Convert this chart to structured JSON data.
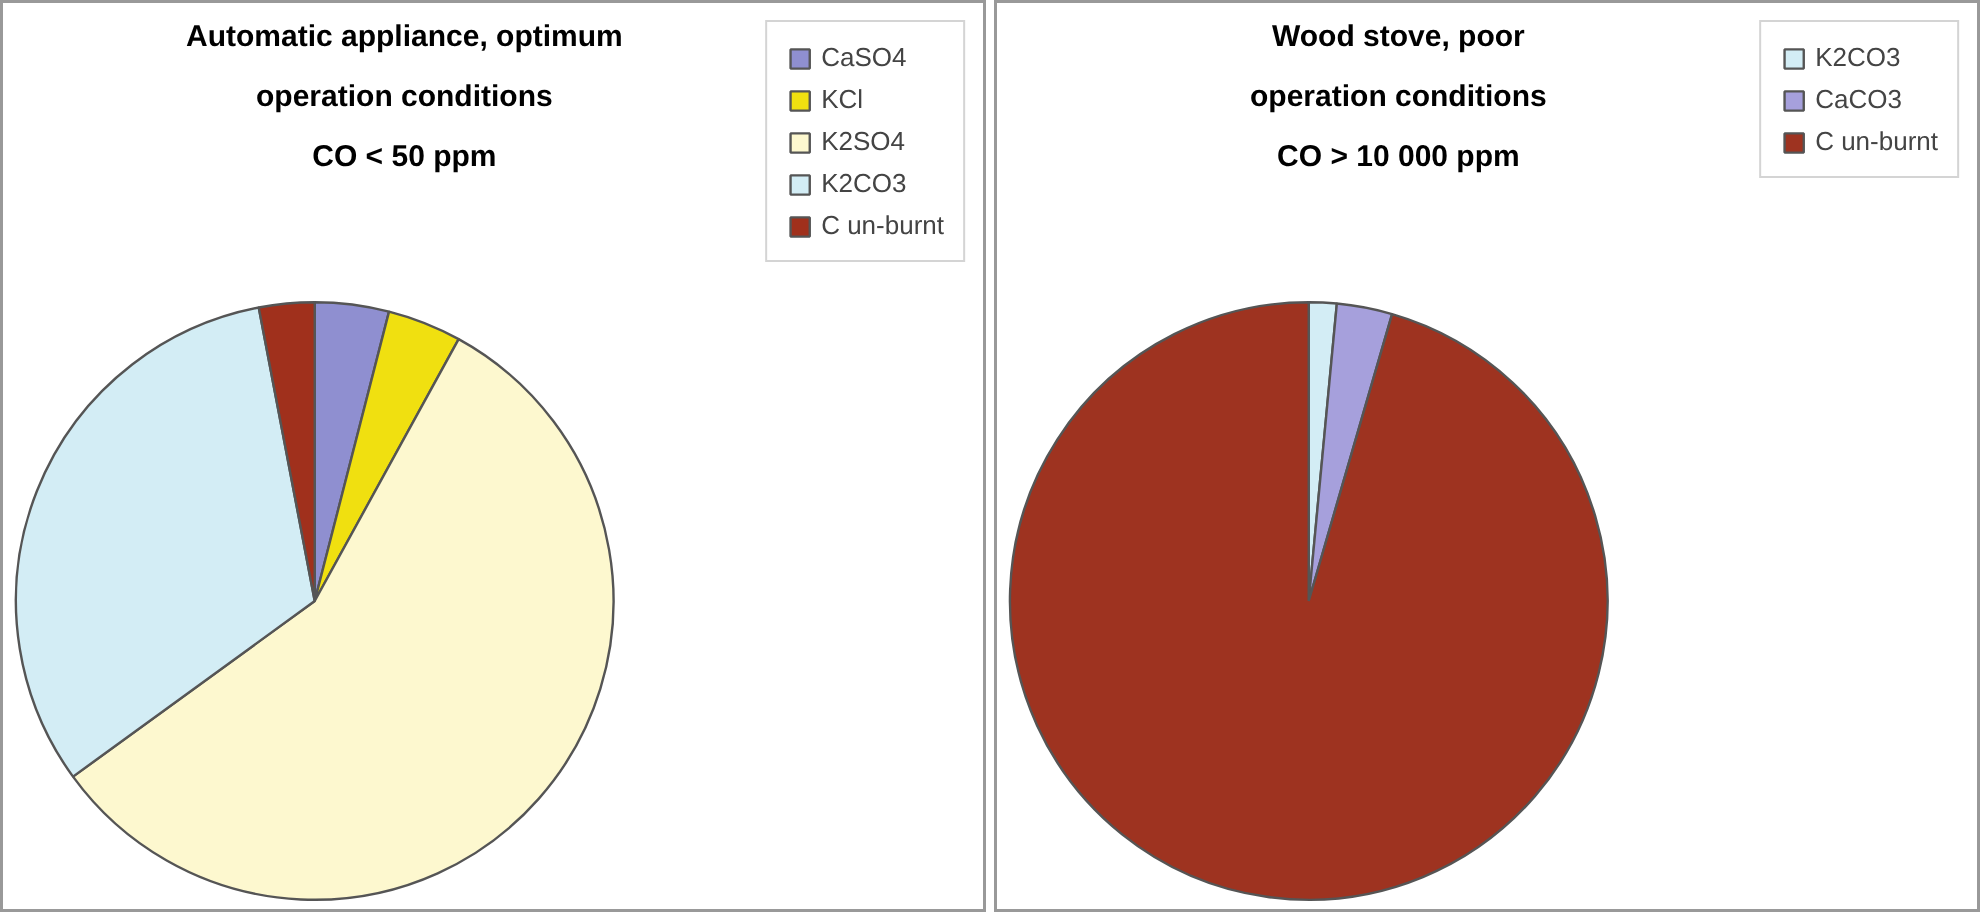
{
  "chart_data": [
    {
      "type": "pie",
      "title": "Automatic appliance, optimum\noperation conditions\nCO < 50 ppm",
      "categories": [
        "CaSO4",
        "KCl",
        "K2SO4",
        "K2CO3",
        "C un-burnt"
      ],
      "values": [
        4,
        4,
        57,
        32,
        3
      ],
      "colors": [
        "#8f8fd0",
        "#f0e010",
        "#fdf8cf",
        "#d3edf5",
        "#a0301c"
      ],
      "legend": "top right"
    },
    {
      "type": "pie",
      "title": "Wood stove, poor\noperation conditions\nCO > 10 000 ppm",
      "categories": [
        "K2CO3",
        "CaCO3",
        "C un-burnt"
      ],
      "values": [
        1.5,
        3,
        95.5
      ],
      "colors": [
        "#d3edf5",
        "#a6a0dc",
        "#9e3320"
      ],
      "legend": "top right"
    }
  ]
}
